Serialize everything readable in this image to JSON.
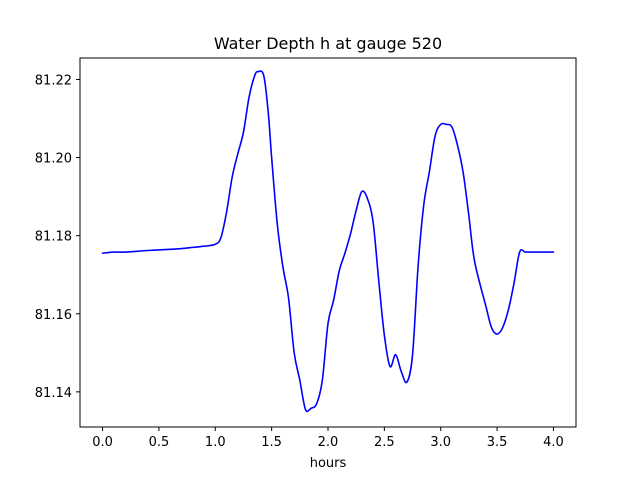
{
  "chart_data": {
    "type": "line",
    "title": "Water Depth h at gauge 520",
    "xlabel": "hours",
    "ylabel": "",
    "xlim": [
      -0.2,
      4.2
    ],
    "ylim": [
      81.131,
      81.2255
    ],
    "xticks": [
      0.0,
      0.5,
      1.0,
      1.5,
      2.0,
      2.5,
      3.0,
      3.5,
      4.0
    ],
    "xtick_labels": [
      "0.0",
      "0.5",
      "1.0",
      "1.5",
      "2.0",
      "2.5",
      "3.0",
      "3.5",
      "4.0"
    ],
    "yticks": [
      81.14,
      81.16,
      81.18,
      81.2,
      81.22
    ],
    "ytick_labels": [
      "81.14",
      "81.16",
      "81.18",
      "81.20",
      "81.22"
    ],
    "grid": false,
    "series": [
      {
        "color": "#0000ff",
        "x": [
          0.0,
          0.1,
          0.2,
          0.4,
          0.6,
          0.7,
          0.8,
          0.9,
          1.0,
          1.05,
          1.1,
          1.15,
          1.2,
          1.25,
          1.3,
          1.35,
          1.38,
          1.43,
          1.47,
          1.5,
          1.55,
          1.6,
          1.65,
          1.7,
          1.75,
          1.8,
          1.85,
          1.9,
          1.95,
          2.0,
          2.05,
          2.1,
          2.15,
          2.2,
          2.25,
          2.3,
          2.35,
          2.4,
          2.45,
          2.5,
          2.55,
          2.6,
          2.65,
          2.7,
          2.75,
          2.8,
          2.85,
          2.9,
          2.95,
          3.0,
          3.05,
          3.1,
          3.15,
          3.2,
          3.25,
          3.3,
          3.4,
          3.45,
          3.5,
          3.55,
          3.6,
          3.65,
          3.7,
          3.75,
          3.8,
          3.85,
          3.9,
          3.95,
          4.0
        ],
        "y": [
          81.1755,
          81.1758,
          81.1758,
          81.1762,
          81.1765,
          81.1767,
          81.177,
          81.1773,
          81.1778,
          81.1795,
          81.186,
          81.195,
          81.201,
          81.2065,
          81.2155,
          81.221,
          81.222,
          81.221,
          81.2115,
          81.2,
          81.183,
          81.172,
          81.164,
          81.15,
          81.143,
          81.1355,
          81.1358,
          81.137,
          81.143,
          81.1575,
          81.1635,
          81.171,
          81.1755,
          81.1805,
          81.1865,
          81.1913,
          81.1895,
          81.1835,
          81.1685,
          81.1545,
          81.1465,
          81.1495,
          81.1452,
          81.1425,
          81.1495,
          81.1725,
          81.188,
          81.1965,
          81.2055,
          81.2085,
          81.2085,
          81.2078,
          81.203,
          81.196,
          81.185,
          81.1735,
          81.162,
          81.1565,
          81.1548,
          81.1565,
          81.161,
          81.1678,
          81.1758,
          81.1758,
          81.1758,
          81.1758,
          81.1758,
          81.1758,
          81.1758
        ]
      }
    ]
  }
}
